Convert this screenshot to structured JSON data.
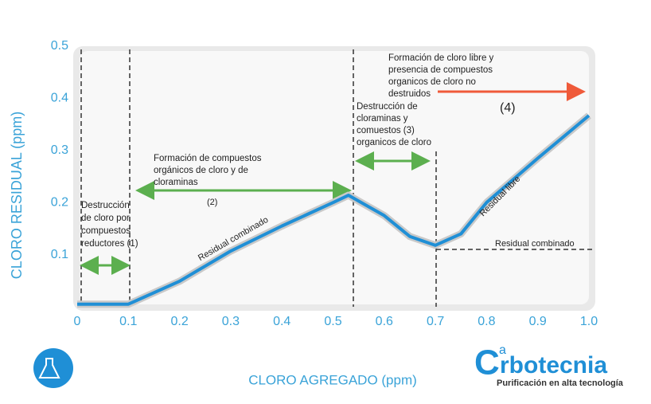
{
  "chart_data": {
    "type": "line",
    "y_label": "CLORO RESIDUAL (ppm)",
    "x_label": "CLORO AGREGADO (ppm)",
    "x": [
      0,
      0.1,
      0.2,
      0.3,
      0.4,
      0.5,
      0.53,
      0.6,
      0.65,
      0.7,
      0.75,
      0.8,
      0.9,
      1.0
    ],
    "values": [
      0.005,
      0.005,
      0.049,
      0.107,
      0.155,
      0.2,
      0.214,
      0.175,
      0.135,
      0.118,
      0.14,
      0.2,
      0.285,
      0.367
    ],
    "color": "#1f8fd6",
    "xlim": [
      0,
      1
    ],
    "ylim": [
      0,
      0.5
    ],
    "xticks": [
      0,
      0.1,
      0.2,
      0.3,
      0.4,
      0.5,
      0.6,
      0.7,
      0.8,
      0.9,
      {
        "value": 1,
        "label": "1.0"
      }
    ],
    "yticks": [
      0.1,
      0.2,
      0.3,
      0.4,
      0.5
    ],
    "annotations": [
      {
        "lines": [
          "Destrucción",
          "de cloro por",
          "compuestos",
          "reductores  (1)"
        ]
      },
      {
        "lines": [
          "Formación de compuestos",
          "orgánicos de cloro y de",
          "cloraminas"
        ]
      },
      {
        "lines": [
          "(2)"
        ]
      },
      {
        "lines": [
          "Destrucción de",
          "cloraminas y",
          "comuestos          (3)",
          "organicos de cloro"
        ]
      },
      {
        "lines": [
          "Formación de cloro libre y",
          "presencia de compuestos",
          "organicos de cloro no",
          "destruidos"
        ]
      },
      {
        "lines": [
          "(4)"
        ]
      },
      {
        "lines": [
          "Residual combinado"
        ]
      },
      {
        "lines": [
          "Residual libre"
        ]
      },
      {
        "lines": [
          "Residual combinado"
        ]
      }
    ]
  },
  "logo": {
    "c": "C",
    "a": "a",
    "rest": "rbotecnia",
    "tagline": "Purificación en alta tecnología"
  }
}
